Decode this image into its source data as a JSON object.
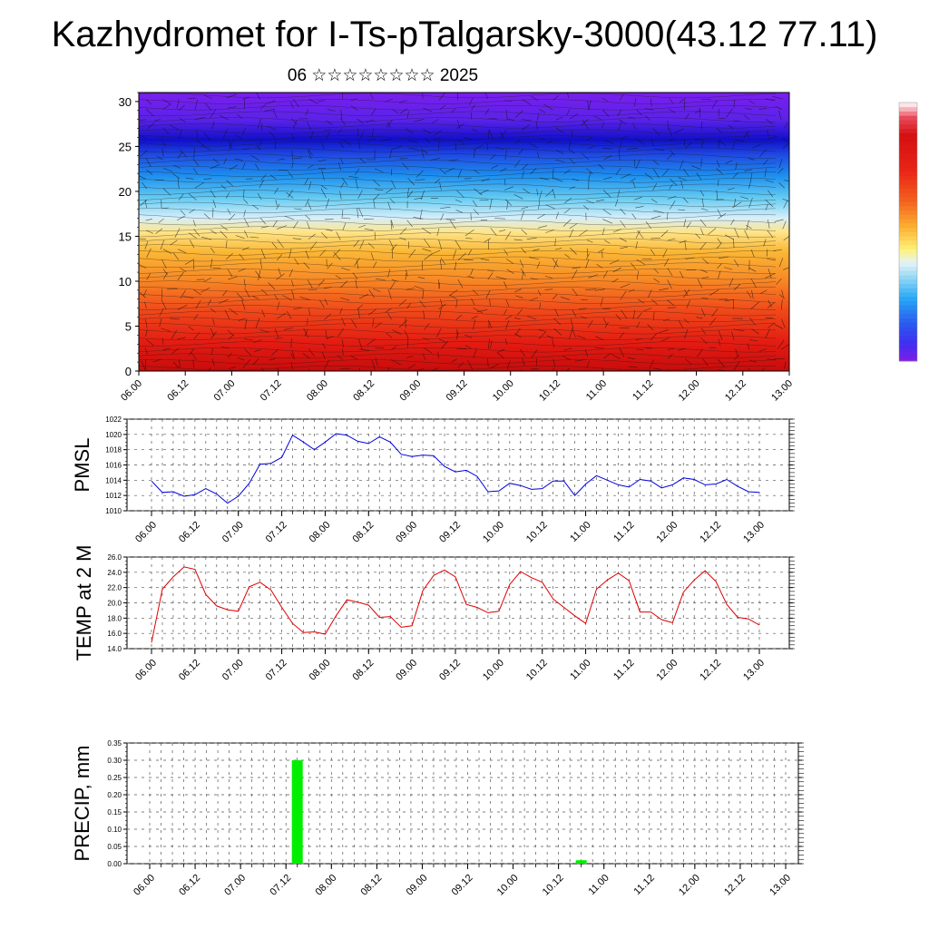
{
  "title": "Kazhydromet for I-Ts-pTalgarsky-3000(43.12 77.11)",
  "subtitle": "06 ☆☆☆☆☆☆☆☆ 2025",
  "colors": {
    "pmsl": "#0000dd",
    "temp": "#dd0000",
    "precip": "#00ee00"
  },
  "chart_data": [
    {
      "type": "heatmap",
      "name": "vertical cross-section with wind barbs",
      "x_ticks": [
        "06.00",
        "06.12",
        "07.00",
        "07.12",
        "08.00",
        "08.12",
        "09.00",
        "09.12",
        "10.00",
        "10.12",
        "11.00",
        "11.12",
        "12.00",
        "12.12",
        "13.00"
      ],
      "y_ticks": [
        0,
        5,
        10,
        15,
        20,
        25,
        30
      ],
      "ylim": [
        0,
        31
      ],
      "colorbar": [
        "#7a1fe8",
        "#4a2cf0",
        "#2a4be8",
        "#2a7ef5",
        "#27b3f5",
        "#8fdcf5",
        "#d8f0f5",
        "#fff27a",
        "#fdd24a",
        "#fbb030",
        "#f78a26",
        "#f4621e",
        "#f03a18",
        "#e81a14",
        "#d40f10",
        "#fde6ea"
      ]
    },
    {
      "type": "line",
      "ylabel": "PMSL",
      "ylim": [
        1010,
        1022
      ],
      "y_ticks": [
        "1010",
        "1012",
        "1014",
        "1016",
        "1018",
        "1020",
        "1022"
      ],
      "x_ticks": [
        "06.00",
        "06.12",
        "07.00",
        "07.12",
        "08.00",
        "08.12",
        "09.00",
        "09.12",
        "10.00",
        "10.12",
        "11.00",
        "11.12",
        "12.00",
        "12.12",
        "13.00"
      ],
      "x_hours_step": 3,
      "values": [
        1013.9,
        1012.4,
        1012.5,
        1011.9,
        1012.1,
        1012.9,
        1012.2,
        1011.0,
        1011.9,
        1013.6,
        1016.1,
        1016.2,
        1017.0,
        1019.9,
        1019.0,
        1018.0,
        1019.0,
        1020.1,
        1019.9,
        1019.1,
        1018.8,
        1019.7,
        1019.0,
        1017.4,
        1017.1,
        1017.3,
        1017.2,
        1015.8,
        1015.1,
        1015.3,
        1014.5,
        1012.5,
        1012.6,
        1013.6,
        1013.3,
        1012.8,
        1012.9,
        1013.9,
        1013.9,
        1012.0,
        1013.5,
        1014.6,
        1014.0,
        1013.4,
        1013.1,
        1014.1,
        1013.9,
        1013.0,
        1013.4,
        1014.3,
        1014.1,
        1013.4,
        1013.5,
        1014.1,
        1013.2,
        1012.5,
        1012.4
      ]
    },
    {
      "type": "line",
      "ylabel": "TEMP at 2 M",
      "ylim": [
        14,
        26
      ],
      "y_ticks": [
        "14.0",
        "16.0",
        "18.0",
        "20.0",
        "22.0",
        "24.0",
        "26.0"
      ],
      "x_ticks": [
        "06.00",
        "06.12",
        "07.00",
        "07.12",
        "08.00",
        "08.12",
        "09.00",
        "09.12",
        "10.00",
        "10.12",
        "11.00",
        "11.12",
        "12.00",
        "12.12",
        "13.00"
      ],
      "x_hours_step": 3,
      "values": [
        14.8,
        21.8,
        23.4,
        24.7,
        24.4,
        21.1,
        19.6,
        19.1,
        18.9,
        22.1,
        22.7,
        21.7,
        19.4,
        17.3,
        16.1,
        16.2,
        15.9,
        18.3,
        20.4,
        20.1,
        19.7,
        18.1,
        18.2,
        16.8,
        17.0,
        21.6,
        23.6,
        24.3,
        23.4,
        19.8,
        19.4,
        18.7,
        18.9,
        22.4,
        24.1,
        23.3,
        22.7,
        20.5,
        19.4,
        18.3,
        17.3,
        21.8,
        23.0,
        23.9,
        22.9,
        18.8,
        18.8,
        17.8,
        17.4,
        21.4,
        23.0,
        24.2,
        22.8,
        19.8,
        18.1,
        17.9,
        17.1
      ]
    },
    {
      "type": "bar",
      "ylabel": "PRECIP, mm",
      "ylim": [
        0,
        0.35
      ],
      "y_ticks": [
        "0.00",
        "0.05",
        "0.10",
        "0.15",
        "0.20",
        "0.25",
        "0.30",
        "0.35"
      ],
      "x_ticks": [
        "06.00",
        "06.12",
        "07.00",
        "07.12",
        "08.00",
        "08.12",
        "09.00",
        "09.12",
        "10.00",
        "10.12",
        "11.00",
        "11.12",
        "12.00",
        "12.12",
        "13.00"
      ],
      "bars": [
        {
          "x_hours": 39,
          "value": 0.3
        },
        {
          "x_hours": 114,
          "value": 0.01
        }
      ]
    }
  ]
}
